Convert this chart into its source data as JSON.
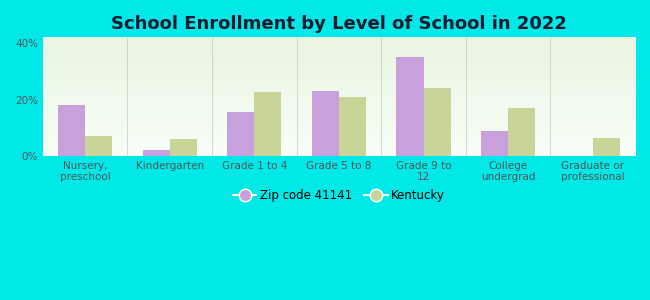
{
  "title": "School Enrollment by Level of School in 2022",
  "categories": [
    "Nursery,\npreschool",
    "Kindergarten",
    "Grade 1 to 4",
    "Grade 5 to 8",
    "Grade 9 to\n12",
    "College\nundergrad",
    "Graduate or\nprofessional"
  ],
  "zip_values": [
    18.0,
    2.0,
    15.5,
    23.0,
    35.0,
    9.0,
    0.0
  ],
  "ky_values": [
    7.0,
    6.0,
    22.5,
    21.0,
    24.0,
    17.0,
    6.5
  ],
  "zip_color": "#c8a0dc",
  "ky_color": "#c8d498",
  "background_outer": "#00e8e8",
  "background_inner_top": "#e8f5e0",
  "background_inner_bottom": "#f8fef8",
  "ylim": [
    0,
    42
  ],
  "yticks": [
    0,
    20,
    40
  ],
  "ytick_labels": [
    "0%",
    "20%",
    "40%"
  ],
  "legend_zip_label": "Zip code 41141",
  "legend_ky_label": "Kentucky",
  "bar_width": 0.32,
  "title_fontsize": 13,
  "tick_fontsize": 7.5,
  "legend_fontsize": 8.5
}
